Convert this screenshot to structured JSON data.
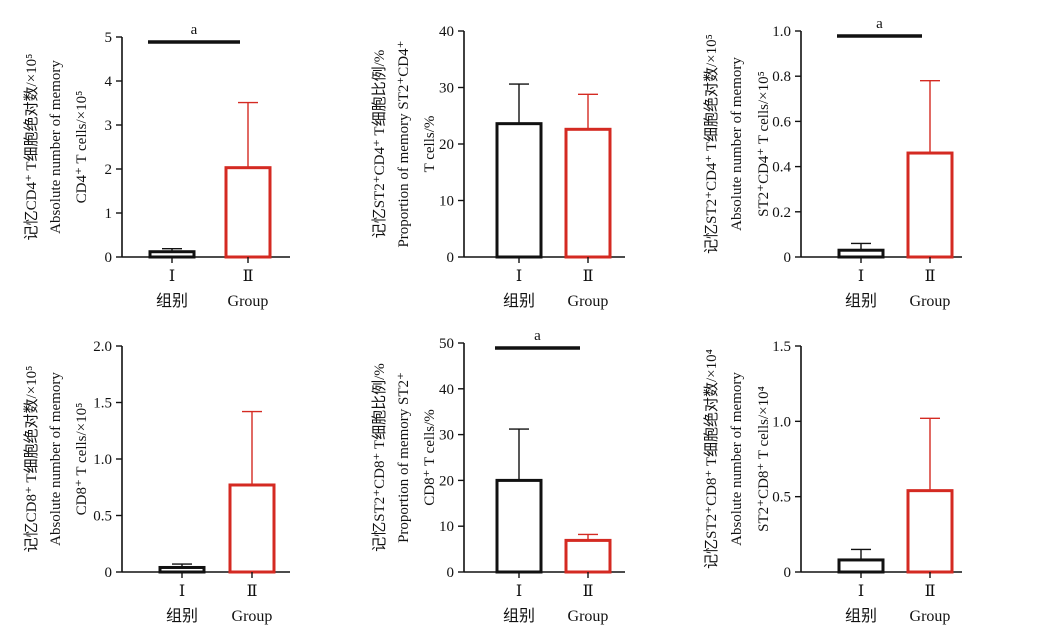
{
  "colors": {
    "group_I": "#111111",
    "group_II": "#d42a22",
    "axis": "#111111"
  },
  "chart_data": [
    {
      "type": "bar",
      "ylabel": [
        "记忆CD4⁺ T细胞绝对数/×10⁵",
        "Absolute  number  of  memory",
        "CD4⁺  T  cells/×10⁵"
      ],
      "ylim": [
        0,
        5
      ],
      "yticks": [
        "0",
        "1",
        "2",
        "3",
        "4",
        "5"
      ],
      "categories": [
        "Ⅰ",
        "Ⅱ"
      ],
      "xlabel_cn": "组别",
      "xlabel_en": "Group",
      "values": [
        0.12,
        2.03
      ],
      "errors": [
        0.07,
        1.48
      ],
      "significance": "a"
    },
    {
      "type": "bar",
      "ylabel": [
        "记忆ST2⁺CD4⁺ T细胞比例/%",
        "Proportion  of  memory  ST2⁺CD4⁺",
        "T  cells/%"
      ],
      "ylim": [
        0,
        40
      ],
      "yticks": [
        "0",
        "10",
        "20",
        "30",
        "40"
      ],
      "categories": [
        "Ⅰ",
        "Ⅱ"
      ],
      "xlabel_cn": "组别",
      "xlabel_en": "Group",
      "values": [
        23.6,
        22.6
      ],
      "errors": [
        7.0,
        6.2
      ],
      "significance": ""
    },
    {
      "type": "bar",
      "ylabel": [
        "记忆ST2⁺CD4⁺ T细胞绝对数/×10⁵",
        "Absolute  number  of  memory",
        "ST2⁺CD4⁺  T  cells/×10⁵"
      ],
      "ylim": [
        0,
        1.0
      ],
      "yticks": [
        "0",
        "0.2",
        "0.4",
        "0.6",
        "0.8",
        "1.0"
      ],
      "categories": [
        "Ⅰ",
        "Ⅱ"
      ],
      "xlabel_cn": "组别",
      "xlabel_en": "Group",
      "values": [
        0.03,
        0.46
      ],
      "errors": [
        0.03,
        0.32
      ],
      "significance": "a"
    },
    {
      "type": "bar",
      "ylabel": [
        "记忆CD8⁺ T细胞绝对数/×10⁵",
        "Absolute  number  of  memory",
        "CD8⁺  T  cells/×10⁵"
      ],
      "ylim": [
        0,
        2.0
      ],
      "yticks": [
        "0",
        "0.5",
        "1.0",
        "1.5",
        "2.0"
      ],
      "categories": [
        "Ⅰ",
        "Ⅱ"
      ],
      "xlabel_cn": "组别",
      "xlabel_en": "Group",
      "values": [
        0.04,
        0.77
      ],
      "errors": [
        0.03,
        0.65
      ],
      "significance": ""
    },
    {
      "type": "bar",
      "ylabel": [
        "记忆ST2⁺CD8⁺ T细胞比例/%",
        "Proportion  of  memory  ST2⁺",
        "CD8⁺  T  cells/%"
      ],
      "ylim": [
        0,
        50
      ],
      "yticks": [
        "0",
        "10",
        "20",
        "30",
        "40",
        "50"
      ],
      "categories": [
        "Ⅰ",
        "Ⅱ"
      ],
      "xlabel_cn": "组别",
      "xlabel_en": "Group",
      "values": [
        20.0,
        6.9
      ],
      "errors": [
        11.2,
        1.3
      ],
      "significance": "a"
    },
    {
      "type": "bar",
      "ylabel": [
        "记忆ST2⁺CD8⁺ T细胞绝对数/×10⁴",
        "Absolute  number  of  memory",
        "ST2⁺CD8⁺  T  cells/×10⁴"
      ],
      "ylim": [
        0,
        1.5
      ],
      "yticks": [
        "0",
        "0.5",
        "1.0",
        "1.5"
      ],
      "categories": [
        "Ⅰ",
        "Ⅱ"
      ],
      "xlabel_cn": "组别",
      "xlabel_en": "Group",
      "values": [
        0.08,
        0.54
      ],
      "errors": [
        0.07,
        0.48
      ],
      "significance": ""
    }
  ]
}
